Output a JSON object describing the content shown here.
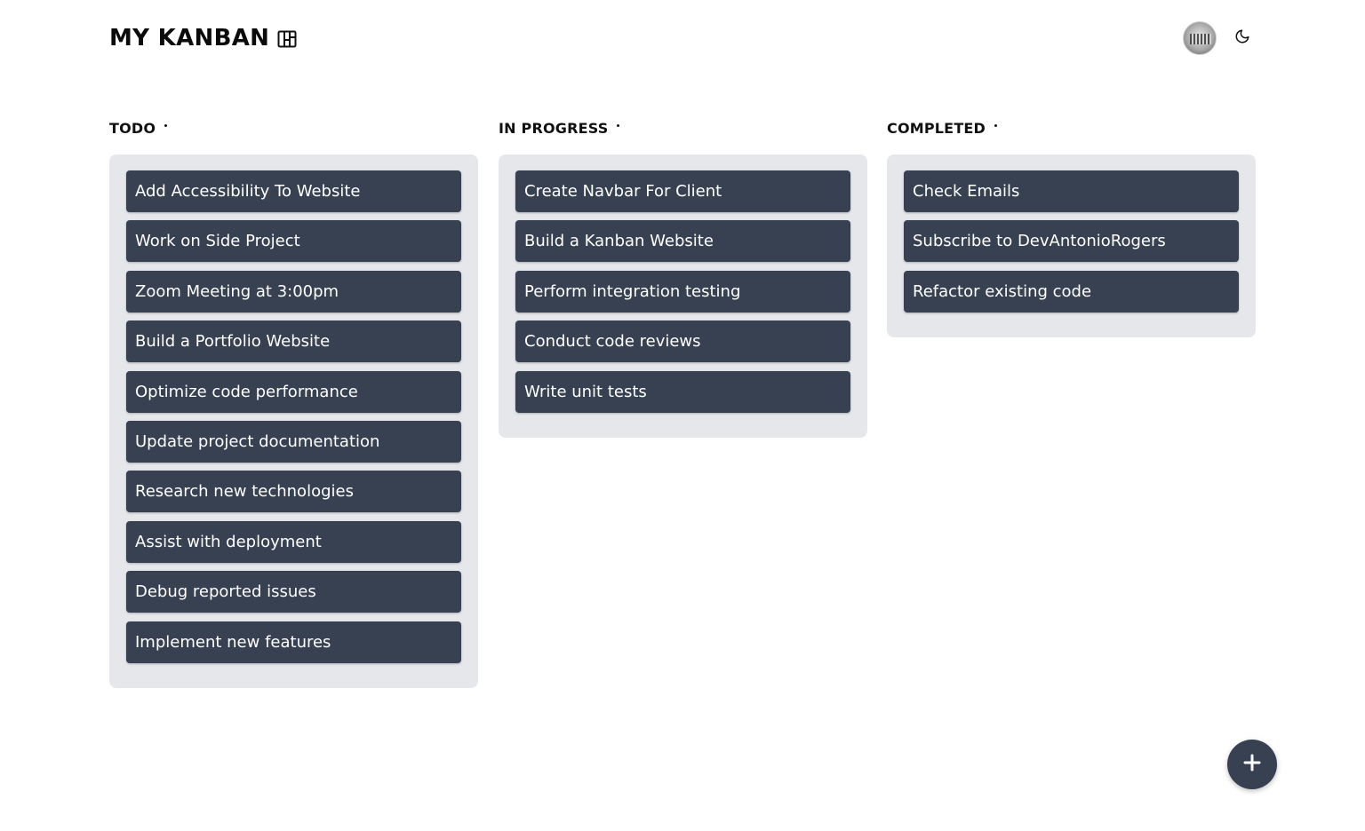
{
  "header": {
    "title": "MY KANBAN",
    "logo_icon": "kanban-board-icon",
    "avatar_icon": "user-avatar",
    "theme_icon": "moon-icon"
  },
  "columns": {
    "todo": {
      "title": "TODO",
      "cards": [
        "Add Accessibility To Website",
        "Work on Side Project",
        "Zoom Meeting at 3:00pm",
        "Build a Portfolio Website",
        "Optimize code performance",
        "Update project documentation",
        "Research new technologies",
        "Assist with deployment",
        "Debug reported issues",
        "Implement new features"
      ]
    },
    "in_progress": {
      "title": "IN PROGRESS",
      "cards": [
        "Create Navbar For Client",
        "Build a Kanban Website",
        "Perform integration testing",
        "Conduct code reviews",
        "Write unit tests"
      ]
    },
    "completed": {
      "title": "COMPLETED",
      "cards": [
        "Check Emails",
        "Subscribe to DevAntonioRogers",
        "Refactor existing code"
      ]
    }
  },
  "fab": {
    "icon": "plus-icon"
  },
  "colors": {
    "card_bg": "#374151",
    "column_bg": "#e5e7eb",
    "text_on_card": "#ffffff"
  }
}
